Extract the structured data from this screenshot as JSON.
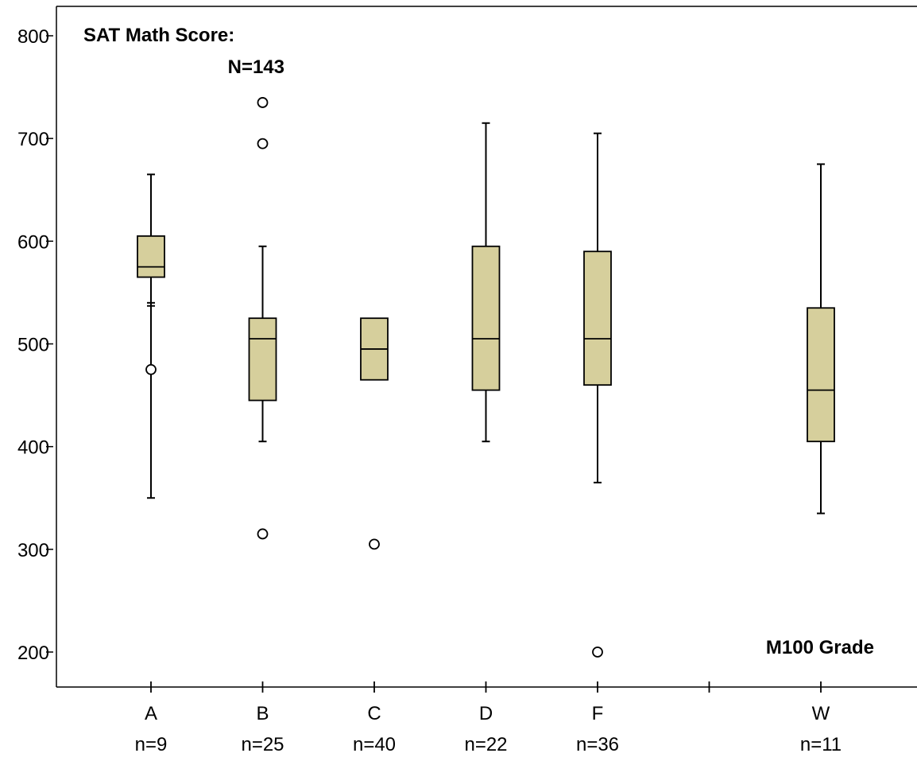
{
  "chart_data": {
    "type": "box",
    "title_line1": "SAT Math Score:",
    "title_line2": "N=143",
    "xlabel": "M100 Grade",
    "ylim": [
      150,
      850
    ],
    "yticks": [
      200,
      300,
      400,
      500,
      600,
      700,
      800
    ],
    "colors": {
      "box_fill": "#d6cf9c",
      "stroke": "#000000"
    },
    "categories": [
      {
        "label": "A",
        "n_label": "n=9",
        "slot": 1,
        "whisker_low": 350,
        "q1": 565,
        "median": 575,
        "q3": 605,
        "whisker_high": 665,
        "outliers": [
          475
        ],
        "extra_caps": [
          540,
          537
        ]
      },
      {
        "label": "B",
        "n_label": "n=25",
        "slot": 2,
        "whisker_low": 405,
        "q1": 445,
        "median": 505,
        "q3": 525,
        "whisker_high": 595,
        "outliers": [
          315,
          695,
          735
        ],
        "extra_caps": []
      },
      {
        "label": "C",
        "n_label": "n=40",
        "slot": 3,
        "whisker_low": null,
        "q1": 465,
        "median": 495,
        "q3": 525,
        "whisker_high": null,
        "outliers": [
          305
        ],
        "extra_caps": []
      },
      {
        "label": "D",
        "n_label": "n=22",
        "slot": 4,
        "whisker_low": 405,
        "q1": 455,
        "median": 505,
        "q3": 595,
        "whisker_high": 715,
        "outliers": [],
        "extra_caps": []
      },
      {
        "label": "F",
        "n_label": "n=36",
        "slot": 5,
        "whisker_low": 365,
        "q1": 460,
        "median": 505,
        "q3": 590,
        "whisker_high": 705,
        "outliers": [
          200
        ],
        "extra_caps": []
      },
      {
        "label": "",
        "n_label": "",
        "slot": 6,
        "whisker_low": null,
        "q1": null,
        "median": null,
        "q3": null,
        "whisker_high": null,
        "outliers": [],
        "extra_caps": []
      },
      {
        "label": "W",
        "n_label": "n=11",
        "slot": 7,
        "whisker_low": 335,
        "q1": 405,
        "median": 455,
        "q3": 535,
        "whisker_high": 675,
        "outliers": [],
        "extra_caps": []
      }
    ]
  }
}
